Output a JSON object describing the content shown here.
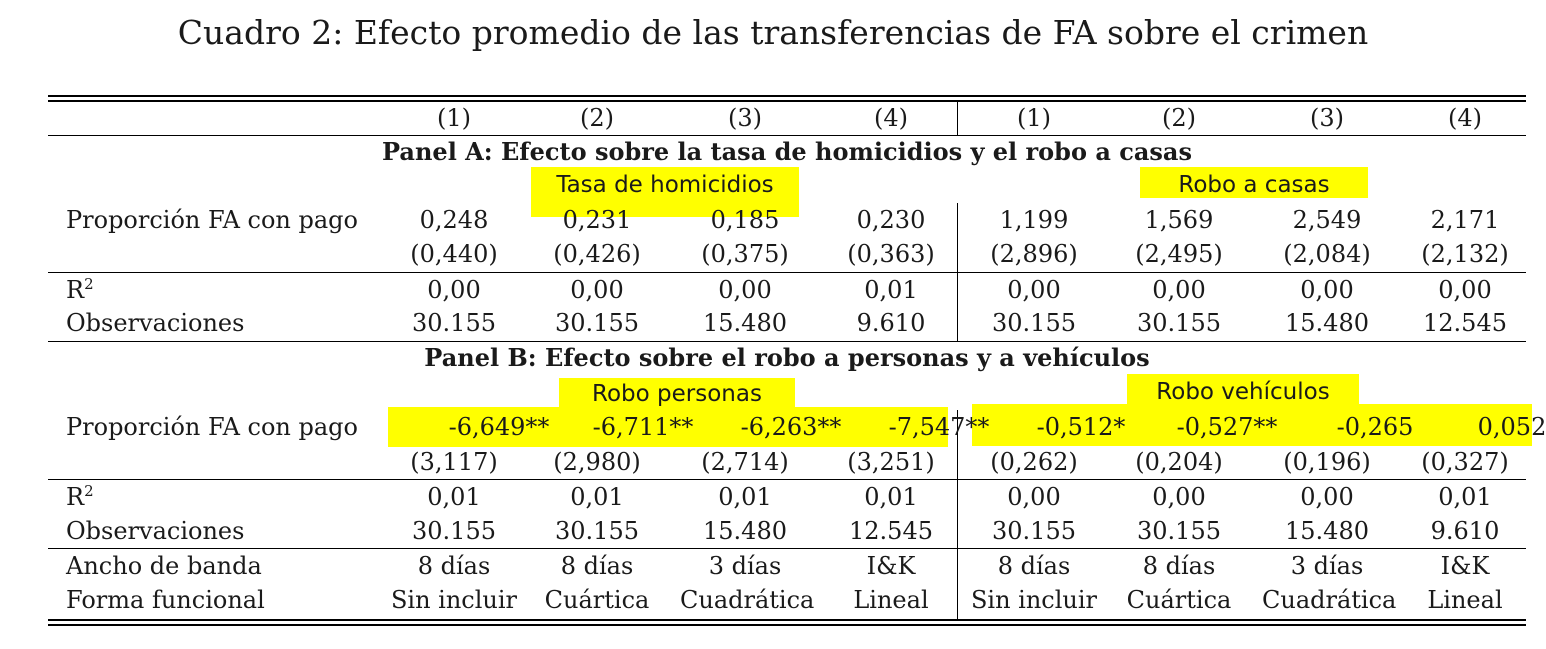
{
  "caption": "Cuadro 2: Efecto promedio de las transferencias de FA sobre el crimen",
  "column_headers": [
    "(1)",
    "(2)",
    "(3)",
    "(4)",
    "(1)",
    "(2)",
    "(3)",
    "(4)"
  ],
  "panel_a": {
    "heading": "Panel A: Efecto sobre la tasa de homicidios y el robo a casas",
    "group_left": "Tasa de homicidios",
    "group_right": "Robo a casas",
    "coef_label": "Proporción FA con pago",
    "coef": [
      "0,248",
      "0,231",
      "0,185",
      "0,230",
      "1,199",
      "1,569",
      "2,549",
      "2,171"
    ],
    "se": [
      "(0,440)",
      "(0,426)",
      "(0,375)",
      "(0,363)",
      "(2,896)",
      "(2,495)",
      "(2,084)",
      "(2,132)"
    ],
    "r2_label_base": "R",
    "r2_label_sup": "2",
    "r2": [
      "0,00",
      "0,00",
      "0,00",
      "0,01",
      "0,00",
      "0,00",
      "0,00",
      "0,00"
    ],
    "obs_label": "Observaciones",
    "obs": [
      "30.155",
      "30.155",
      "15.480",
      "9.610",
      "30.155",
      "30.155",
      "15.480",
      "12.545"
    ]
  },
  "panel_b": {
    "heading": "Panel B: Efecto sobre el robo a personas y a vehículos",
    "group_left": "Robo personas",
    "group_right": "Robo vehículos",
    "coef_label": "Proporción FA con pago",
    "coef": [
      "-6,649**",
      "-6,711**",
      "-6,263**",
      "-7,547**",
      "-0,512*",
      "-0,527**",
      "-0,265",
      "0,052"
    ],
    "se": [
      "(3,117)",
      "(2,980)",
      "(2,714)",
      "(3,251)",
      "(0,262)",
      "(0,204)",
      "(0,196)",
      "(0,327)"
    ],
    "r2_label_base": "R",
    "r2_label_sup": "2",
    "r2": [
      "0,01",
      "0,01",
      "0,01",
      "0,01",
      "0,00",
      "0,00",
      "0,00",
      "0,01"
    ],
    "obs_label": "Observaciones",
    "obs": [
      "30.155",
      "30.155",
      "15.480",
      "12.545",
      "30.155",
      "30.155",
      "15.480",
      "9.610"
    ]
  },
  "footer": {
    "bandwidth_label": "Ancho de banda",
    "bandwidth": [
      "8 días",
      "8 días",
      "3 días",
      "I&K",
      "8 días",
      "8 días",
      "3 días",
      "I&K"
    ],
    "form_label": "Forma funcional",
    "form": [
      "Sin incluir",
      "Cuártica",
      "Cuadrática",
      "Lineal",
      "Sin incluir",
      "Cuártica",
      "Cuadrática",
      "Lineal"
    ]
  },
  "highlight_color": "#ffff00"
}
